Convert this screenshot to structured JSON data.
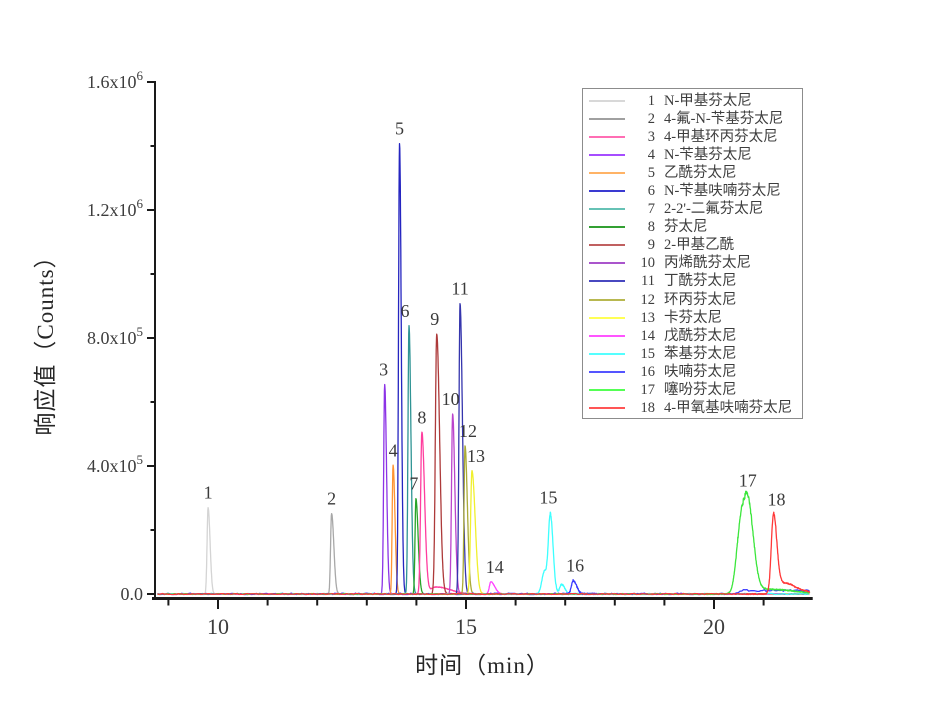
{
  "figure": {
    "background": "#ffffff",
    "axis_color": "#1a1a1a",
    "text_color": "#3d3d3d"
  },
  "chart_data": {
    "type": "line",
    "title": "",
    "xlabel": "时间（min）",
    "ylabel": "响应值（Counts）",
    "x_range_min": [
      8.75,
      21.95
    ],
    "x_major_ticks": [
      10,
      15,
      20
    ],
    "x_minor_ticks": [
      9,
      11,
      12,
      13,
      14,
      16,
      17,
      18,
      19,
      21
    ],
    "y_range_counts": [
      0,
      1600000
    ],
    "y_major_ticks": [
      {
        "value": 0,
        "label_main": "0.0",
        "label_exp": ""
      },
      {
        "value": 400000,
        "label_main": "4.0x10",
        "label_exp": "5"
      },
      {
        "value": 800000,
        "label_main": "8.0x10",
        "label_exp": "5"
      },
      {
        "value": 1200000,
        "label_main": "1.2x10",
        "label_exp": "6"
      },
      {
        "value": 1600000,
        "label_main": "1.6x10",
        "label_exp": "6"
      }
    ],
    "y_minor_ticks": [
      200000,
      600000,
      1000000,
      1400000
    ],
    "grid": false,
    "legend_position": "upper right",
    "series": [
      {
        "num": 1,
        "name": "N-甲基芬太尼",
        "legend_color": "#d8d8d8",
        "trace_color": "#d4d4d4",
        "peak_label": "1",
        "retention_min": 9.8,
        "peak_height_counts": 270000,
        "label_dx": 0,
        "noise_counts": 900,
        "jag_counts": 0,
        "components": [
          [
            9.8,
            270000,
            0.02,
            0.04
          ]
        ],
        "plateaus": []
      },
      {
        "num": 2,
        "name": "4-氟-N-苄基芬太尼",
        "legend_color": "#a0a0a0",
        "trace_color": "#a8a8a8",
        "peak_label": "2",
        "retention_min": 12.29,
        "peak_height_counts": 252000,
        "label_dx": 0,
        "noise_counts": 900,
        "jag_counts": 0,
        "components": [
          [
            12.29,
            252000,
            0.02,
            0.045
          ]
        ],
        "plateaus": []
      },
      {
        "num": 3,
        "name": "4-甲基环丙芬太尼",
        "legend_color": "#ff6eb4",
        "trace_color": "#8c33e6",
        "peak_label": "3",
        "retention_min": 13.36,
        "peak_height_counts": 655000,
        "label_dx": -1,
        "noise_counts": 900,
        "jag_counts": 0,
        "components": [
          [
            13.36,
            655000,
            0.02,
            0.038
          ]
        ],
        "plateaus": []
      },
      {
        "num": 4,
        "name": "N-苄基芬太尼",
        "legend_color": "#a64dff",
        "trace_color": "#ff9433",
        "peak_label": "4",
        "retention_min": 13.53,
        "peak_height_counts": 402000,
        "label_dx": 0,
        "noise_counts": 900,
        "jag_counts": 0,
        "components": [
          [
            13.53,
            402000,
            0.018,
            0.038
          ]
        ],
        "plateaus": []
      },
      {
        "num": 5,
        "name": "乙酰芬太尼",
        "legend_color": "#ffb366",
        "trace_color": "#2525c0",
        "peak_label": "5",
        "retention_min": 13.66,
        "peak_height_counts": 1408000,
        "label_dx": 0,
        "noise_counts": 900,
        "jag_counts": 0,
        "components": [
          [
            13.66,
            1408000,
            0.02,
            0.034
          ]
        ],
        "plateaus": []
      },
      {
        "num": 6,
        "name": "N-苄基呋喃芬太尼",
        "legend_color": "#3a3ad1",
        "trace_color": "#2f9494",
        "peak_label": "6",
        "retention_min": 13.85,
        "peak_height_counts": 838000,
        "label_dx": -4,
        "noise_counts": 900,
        "jag_counts": 0,
        "components": [
          [
            13.85,
            838000,
            0.02,
            0.04
          ]
        ],
        "plateaus": []
      },
      {
        "num": 7,
        "name": "2-2'-二氟芬太尼",
        "legend_color": "#66c2b5",
        "trace_color": "#28a428",
        "peak_label": "7",
        "retention_min": 13.99,
        "peak_height_counts": 298000,
        "label_dx": -2,
        "noise_counts": 900,
        "jag_counts": 0,
        "components": [
          [
            13.99,
            298000,
            0.018,
            0.045
          ]
        ],
        "plateaus": []
      },
      {
        "num": 8,
        "name": "芬太尼",
        "legend_color": "#33a033",
        "trace_color": "#ff3d9e",
        "peak_label": "8",
        "retention_min": 14.11,
        "peak_height_counts": 505000,
        "label_dx": 0,
        "noise_counts": 900,
        "jag_counts": 0,
        "components": [
          [
            14.11,
            505000,
            0.025,
            0.055
          ],
          [
            14.4,
            22000,
            0.12,
            0.28
          ]
        ],
        "plateaus": []
      },
      {
        "num": 9,
        "name": "2-甲基乙酰",
        "legend_color": "#c06060",
        "trace_color": "#ad3a3a",
        "peak_label": "9",
        "retention_min": 14.41,
        "peak_height_counts": 812000,
        "label_dx": -2,
        "noise_counts": 900,
        "jag_counts": 0,
        "components": [
          [
            14.41,
            812000,
            0.028,
            0.058
          ]
        ],
        "plateaus": []
      },
      {
        "num": 10,
        "name": "丙烯酰芬太尼",
        "legend_color": "#aa55cc",
        "trace_color": "#bb44cc",
        "peak_label": "10",
        "retention_min": 14.73,
        "peak_height_counts": 562000,
        "label_dx": -2,
        "noise_counts": 900,
        "jag_counts": 0,
        "components": [
          [
            14.73,
            562000,
            0.022,
            0.045
          ]
        ],
        "plateaus": []
      },
      {
        "num": 11,
        "name": "丁酰芬太尼",
        "legend_color": "#4848c0",
        "trace_color": "#3535ad",
        "peak_label": "11",
        "retention_min": 14.88,
        "peak_height_counts": 908000,
        "label_dx": 0,
        "noise_counts": 900,
        "jag_counts": 0,
        "components": [
          [
            14.88,
            908000,
            0.022,
            0.048
          ]
        ],
        "plateaus": []
      },
      {
        "num": 12,
        "name": "环丙芬太尼",
        "legend_color": "#b8b850",
        "trace_color": "#abab38",
        "peak_label": "12",
        "retention_min": 14.98,
        "peak_height_counts": 462000,
        "label_dx": 3,
        "noise_counts": 900,
        "jag_counts": 0,
        "components": [
          [
            14.98,
            462000,
            0.02,
            0.048
          ]
        ],
        "plateaus": []
      },
      {
        "num": 13,
        "name": "卡芬太尼",
        "legend_color": "#ffff55",
        "trace_color": "#f0f02e",
        "peak_label": "13",
        "retention_min": 15.12,
        "peak_height_counts": 385000,
        "label_dx": 4,
        "noise_counts": 900,
        "jag_counts": 0,
        "components": [
          [
            15.12,
            385000,
            0.028,
            0.065
          ]
        ],
        "plateaus": []
      },
      {
        "num": 14,
        "name": "戊酰芬太尼",
        "legend_color": "#ff55ff",
        "trace_color": "#ff42ff",
        "peak_label": "14",
        "retention_min": 15.5,
        "peak_height_counts": 38000,
        "label_dx": 4,
        "noise_counts": 1000,
        "jag_counts": 0,
        "components": [
          [
            15.5,
            38000,
            0.03,
            0.08
          ]
        ],
        "plateaus": []
      },
      {
        "num": 15,
        "name": "苯基芬太尼",
        "legend_color": "#55ffff",
        "trace_color": "#3cffff",
        "peak_label": "15",
        "retention_min": 16.7,
        "peak_height_counts": 255000,
        "label_dx": -2,
        "noise_counts": 2200,
        "jag_counts": 4000,
        "components": [
          [
            16.7,
            248000,
            0.04,
            0.055
          ],
          [
            16.58,
            70000,
            0.05,
            0.05
          ],
          [
            16.93,
            30000,
            0.04,
            0.06
          ]
        ],
        "plateaus": []
      },
      {
        "num": 16,
        "name": "呋喃芬太尼",
        "legend_color": "#5555ff",
        "trace_color": "#3a3aff",
        "peak_label": "16",
        "retention_min": 17.16,
        "peak_height_counts": 42000,
        "label_dx": 2,
        "noise_counts": 3000,
        "jag_counts": 0,
        "components": [
          [
            17.16,
            42000,
            0.035,
            0.07
          ]
        ],
        "plateaus": [
          [
            20.55,
            21.95,
            11000
          ]
        ]
      },
      {
        "num": 17,
        "name": "噻吩芬太尼",
        "legend_color": "#55ff55",
        "trace_color": "#3ce63c",
        "peak_label": "17",
        "retention_min": 20.68,
        "peak_height_counts": 308000,
        "label_dx": 0,
        "noise_counts": 1600,
        "jag_counts": 9000,
        "components": [
          [
            20.68,
            285000,
            0.095,
            0.115
          ],
          [
            20.52,
            160000,
            0.08,
            0.08
          ],
          [
            21.1,
            15000,
            0.2,
            0.5
          ]
        ],
        "plateaus": []
      },
      {
        "num": 18,
        "name": "4-甲氧基呋喃芬太尼",
        "legend_color": "#ff5555",
        "trace_color": "#ff3838",
        "peak_label": "18",
        "retention_min": 21.2,
        "peak_height_counts": 248000,
        "label_dx": 3,
        "noise_counts": 1500,
        "jag_counts": 5000,
        "components": [
          [
            21.2,
            245000,
            0.045,
            0.065
          ],
          [
            21.35,
            30000,
            0.08,
            0.2
          ],
          [
            21.6,
            12000,
            0.15,
            0.3
          ]
        ],
        "plateaus": []
      }
    ]
  }
}
